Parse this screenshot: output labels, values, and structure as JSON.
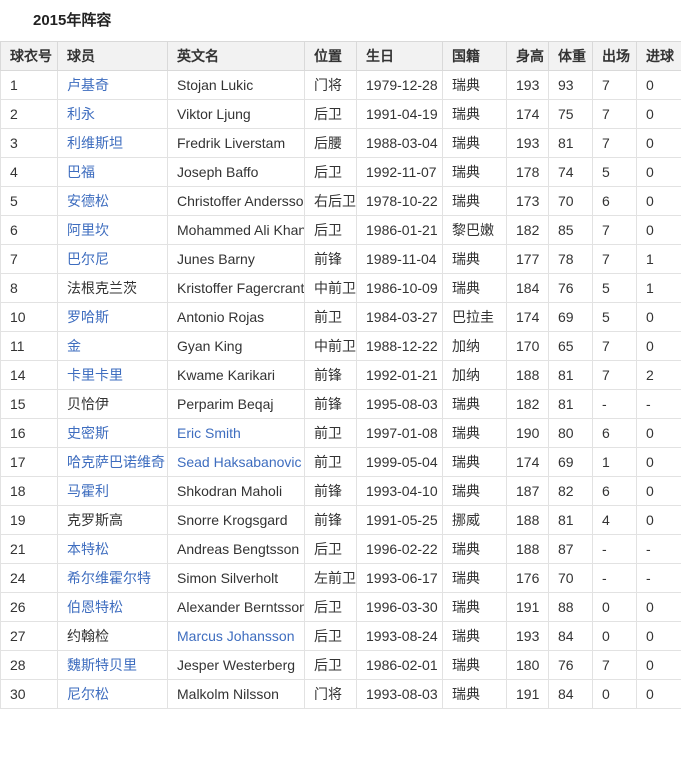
{
  "title": "2015年阵容",
  "colors": {
    "link_blue": "#3e6dbf",
    "header_bg": "#f2f2f2",
    "border": "#e2e2e2",
    "text": "#333333"
  },
  "table": {
    "columns": [
      {
        "key": "number",
        "label": "球衣号"
      },
      {
        "key": "name",
        "label": "球员"
      },
      {
        "key": "en",
        "label": "英文名"
      },
      {
        "key": "pos",
        "label": "位置"
      },
      {
        "key": "birth",
        "label": "生日"
      },
      {
        "key": "nat",
        "label": "国籍"
      },
      {
        "key": "height",
        "label": "身高"
      },
      {
        "key": "weight",
        "label": "体重"
      },
      {
        "key": "apps",
        "label": "出场"
      },
      {
        "key": "goals",
        "label": "进球"
      }
    ],
    "rows": [
      {
        "number": "1",
        "name": "卢基奇",
        "name_link": true,
        "en": "Stojan Lukic",
        "en_link": false,
        "pos": "门将",
        "birth": "1979-12-28",
        "nat": "瑞典",
        "height": "193",
        "weight": "93",
        "apps": "7",
        "goals": "0"
      },
      {
        "number": "2",
        "name": "利永",
        "name_link": true,
        "en": "Viktor Ljung",
        "en_link": false,
        "pos": "后卫",
        "birth": "1991-04-19",
        "nat": "瑞典",
        "height": "174",
        "weight": "75",
        "apps": "7",
        "goals": "0"
      },
      {
        "number": "3",
        "name": "利维斯坦",
        "name_link": true,
        "en": "Fredrik Liverstam",
        "en_link": false,
        "pos": "后腰",
        "birth": "1988-03-04",
        "nat": "瑞典",
        "height": "193",
        "weight": "81",
        "apps": "7",
        "goals": "0"
      },
      {
        "number": "4",
        "name": "巴福",
        "name_link": true,
        "en": "Joseph Baffo",
        "en_link": false,
        "pos": "后卫",
        "birth": "1992-11-07",
        "nat": "瑞典",
        "height": "178",
        "weight": "74",
        "apps": "5",
        "goals": "0"
      },
      {
        "number": "5",
        "name": "安德松",
        "name_link": true,
        "en": "Christoffer Andersson",
        "en_link": false,
        "pos": "右后卫",
        "birth": "1978-10-22",
        "nat": "瑞典",
        "height": "173",
        "weight": "70",
        "apps": "6",
        "goals": "0"
      },
      {
        "number": "6",
        "name": "阿里坎",
        "name_link": true,
        "en": "Mohammed Ali Khan",
        "en_link": false,
        "pos": "后卫",
        "birth": "1986-01-21",
        "nat": "黎巴嫩",
        "height": "182",
        "weight": "85",
        "apps": "7",
        "goals": "0"
      },
      {
        "number": "7",
        "name": "巴尔尼",
        "name_link": true,
        "en": "Junes Barny",
        "en_link": false,
        "pos": "前锋",
        "birth": "1989-11-04",
        "nat": "瑞典",
        "height": "177",
        "weight": "78",
        "apps": "7",
        "goals": "1"
      },
      {
        "number": "8",
        "name": "法根克兰茨",
        "name_link": false,
        "en": "Kristoffer Fagercrantz",
        "en_link": false,
        "pos": "中前卫",
        "birth": "1986-10-09",
        "nat": "瑞典",
        "height": "184",
        "weight": "76",
        "apps": "5",
        "goals": "1"
      },
      {
        "number": "10",
        "name": "罗哈斯",
        "name_link": true,
        "en": "Antonio Rojas",
        "en_link": false,
        "pos": "前卫",
        "birth": "1984-03-27",
        "nat": "巴拉圭",
        "height": "174",
        "weight": "69",
        "apps": "5",
        "goals": "0"
      },
      {
        "number": "11",
        "name": "金",
        "name_link": true,
        "en": "Gyan King",
        "en_link": false,
        "pos": "中前卫",
        "birth": "1988-12-22",
        "nat": "加纳",
        "height": "170",
        "weight": "65",
        "apps": "7",
        "goals": "0"
      },
      {
        "number": "14",
        "name": "卡里卡里",
        "name_link": true,
        "en": "Kwame Karikari",
        "en_link": false,
        "pos": "前锋",
        "birth": "1992-01-21",
        "nat": "加纳",
        "height": "188",
        "weight": "81",
        "apps": "7",
        "goals": "2"
      },
      {
        "number": "15",
        "name": "贝恰伊",
        "name_link": false,
        "en": "Perparim Beqaj",
        "en_link": false,
        "pos": "前锋",
        "birth": "1995-08-03",
        "nat": "瑞典",
        "height": "182",
        "weight": "81",
        "apps": "-",
        "goals": "-"
      },
      {
        "number": "16",
        "name": "史密斯",
        "name_link": true,
        "en": "Eric Smith",
        "en_link": true,
        "pos": "前卫",
        "birth": "1997-01-08",
        "nat": "瑞典",
        "height": "190",
        "weight": "80",
        "apps": "6",
        "goals": "0"
      },
      {
        "number": "17",
        "name": "哈克萨巴诺维奇",
        "name_link": true,
        "en": "Sead Haksabanovic",
        "en_link": true,
        "pos": "前卫",
        "birth": "1999-05-04",
        "nat": "瑞典",
        "height": "174",
        "weight": "69",
        "apps": "1",
        "goals": "0"
      },
      {
        "number": "18",
        "name": "马霍利",
        "name_link": true,
        "en": "Shkodran Maholi",
        "en_link": false,
        "pos": "前锋",
        "birth": "1993-04-10",
        "nat": "瑞典",
        "height": "187",
        "weight": "82",
        "apps": "6",
        "goals": "0"
      },
      {
        "number": "19",
        "name": "克罗斯高",
        "name_link": false,
        "en": "Snorre Krogsgard",
        "en_link": false,
        "pos": "前锋",
        "birth": "1991-05-25",
        "nat": "挪威",
        "height": "188",
        "weight": "81",
        "apps": "4",
        "goals": "0"
      },
      {
        "number": "21",
        "name": "本特松",
        "name_link": true,
        "en": "Andreas Bengtsson",
        "en_link": false,
        "pos": "后卫",
        "birth": "1996-02-22",
        "nat": "瑞典",
        "height": "188",
        "weight": "87",
        "apps": "-",
        "goals": "-"
      },
      {
        "number": "24",
        "name": "希尔维霍尔特",
        "name_link": true,
        "en": "Simon Silverholt",
        "en_link": false,
        "pos": "左前卫",
        "birth": "1993-06-17",
        "nat": "瑞典",
        "height": "176",
        "weight": "70",
        "apps": "-",
        "goals": "-"
      },
      {
        "number": "26",
        "name": "伯恩特松",
        "name_link": true,
        "en": "Alexander Berntsson",
        "en_link": false,
        "pos": "后卫",
        "birth": "1996-03-30",
        "nat": "瑞典",
        "height": "191",
        "weight": "88",
        "apps": "0",
        "goals": "0"
      },
      {
        "number": "27",
        "name": "约翰检",
        "name_link": false,
        "en": "Marcus Johansson",
        "en_link": true,
        "pos": "后卫",
        "birth": "1993-08-24",
        "nat": "瑞典",
        "height": "193",
        "weight": "84",
        "apps": "0",
        "goals": "0"
      },
      {
        "number": "28",
        "name": "魏斯特贝里",
        "name_link": true,
        "en": "Jesper Westerberg",
        "en_link": false,
        "pos": "后卫",
        "birth": "1986-02-01",
        "nat": "瑞典",
        "height": "180",
        "weight": "76",
        "apps": "7",
        "goals": "0"
      },
      {
        "number": "30",
        "name": "尼尔松",
        "name_link": true,
        "en": "Malkolm Nilsson",
        "en_link": false,
        "pos": "门将",
        "birth": "1993-08-03",
        "nat": "瑞典",
        "height": "191",
        "weight": "84",
        "apps": "0",
        "goals": "0"
      }
    ]
  }
}
